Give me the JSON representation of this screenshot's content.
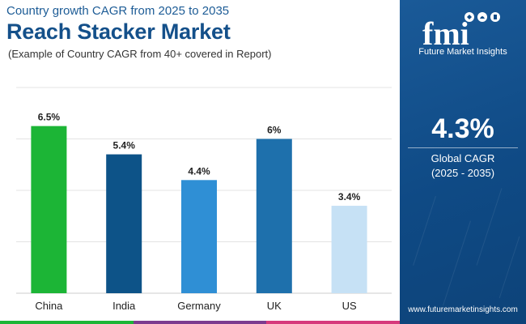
{
  "header": {
    "subtitle": "Country growth CAGR from 2025 to 2035",
    "title": "Reach Stacker Market",
    "note": "(Example of Country CAGR from 40+ covered in Report)"
  },
  "chart_data": {
    "type": "bar",
    "title": "Reach Stacker Market",
    "categories": [
      "China",
      "India",
      "Germany",
      "UK",
      "US"
    ],
    "values": [
      6.5,
      5.4,
      4.4,
      6,
      3.4
    ],
    "value_labels": [
      "6.5%",
      "5.4%",
      "4.4%",
      "6%",
      "3.4%"
    ],
    "colors": [
      "#1cb536",
      "#0d5388",
      "#2f8fd5",
      "#1e70ac",
      "#c6e1f5"
    ],
    "xlabel": "",
    "ylabel": "",
    "ylim": [
      0,
      8
    ],
    "grid": true
  },
  "sidebar": {
    "logo_text": "fmi",
    "logo_caption": "Future Market Insights",
    "global_value": "4.3%",
    "global_label": "Global CAGR",
    "global_period": "(2025 - 2035)",
    "website": "www.futuremarketinsights.com"
  },
  "colors": {
    "title": "#14508a",
    "sidebar": "#0f4a85",
    "strip": [
      "#1cb536",
      "#7c3b8f",
      "#d63a7c"
    ]
  }
}
